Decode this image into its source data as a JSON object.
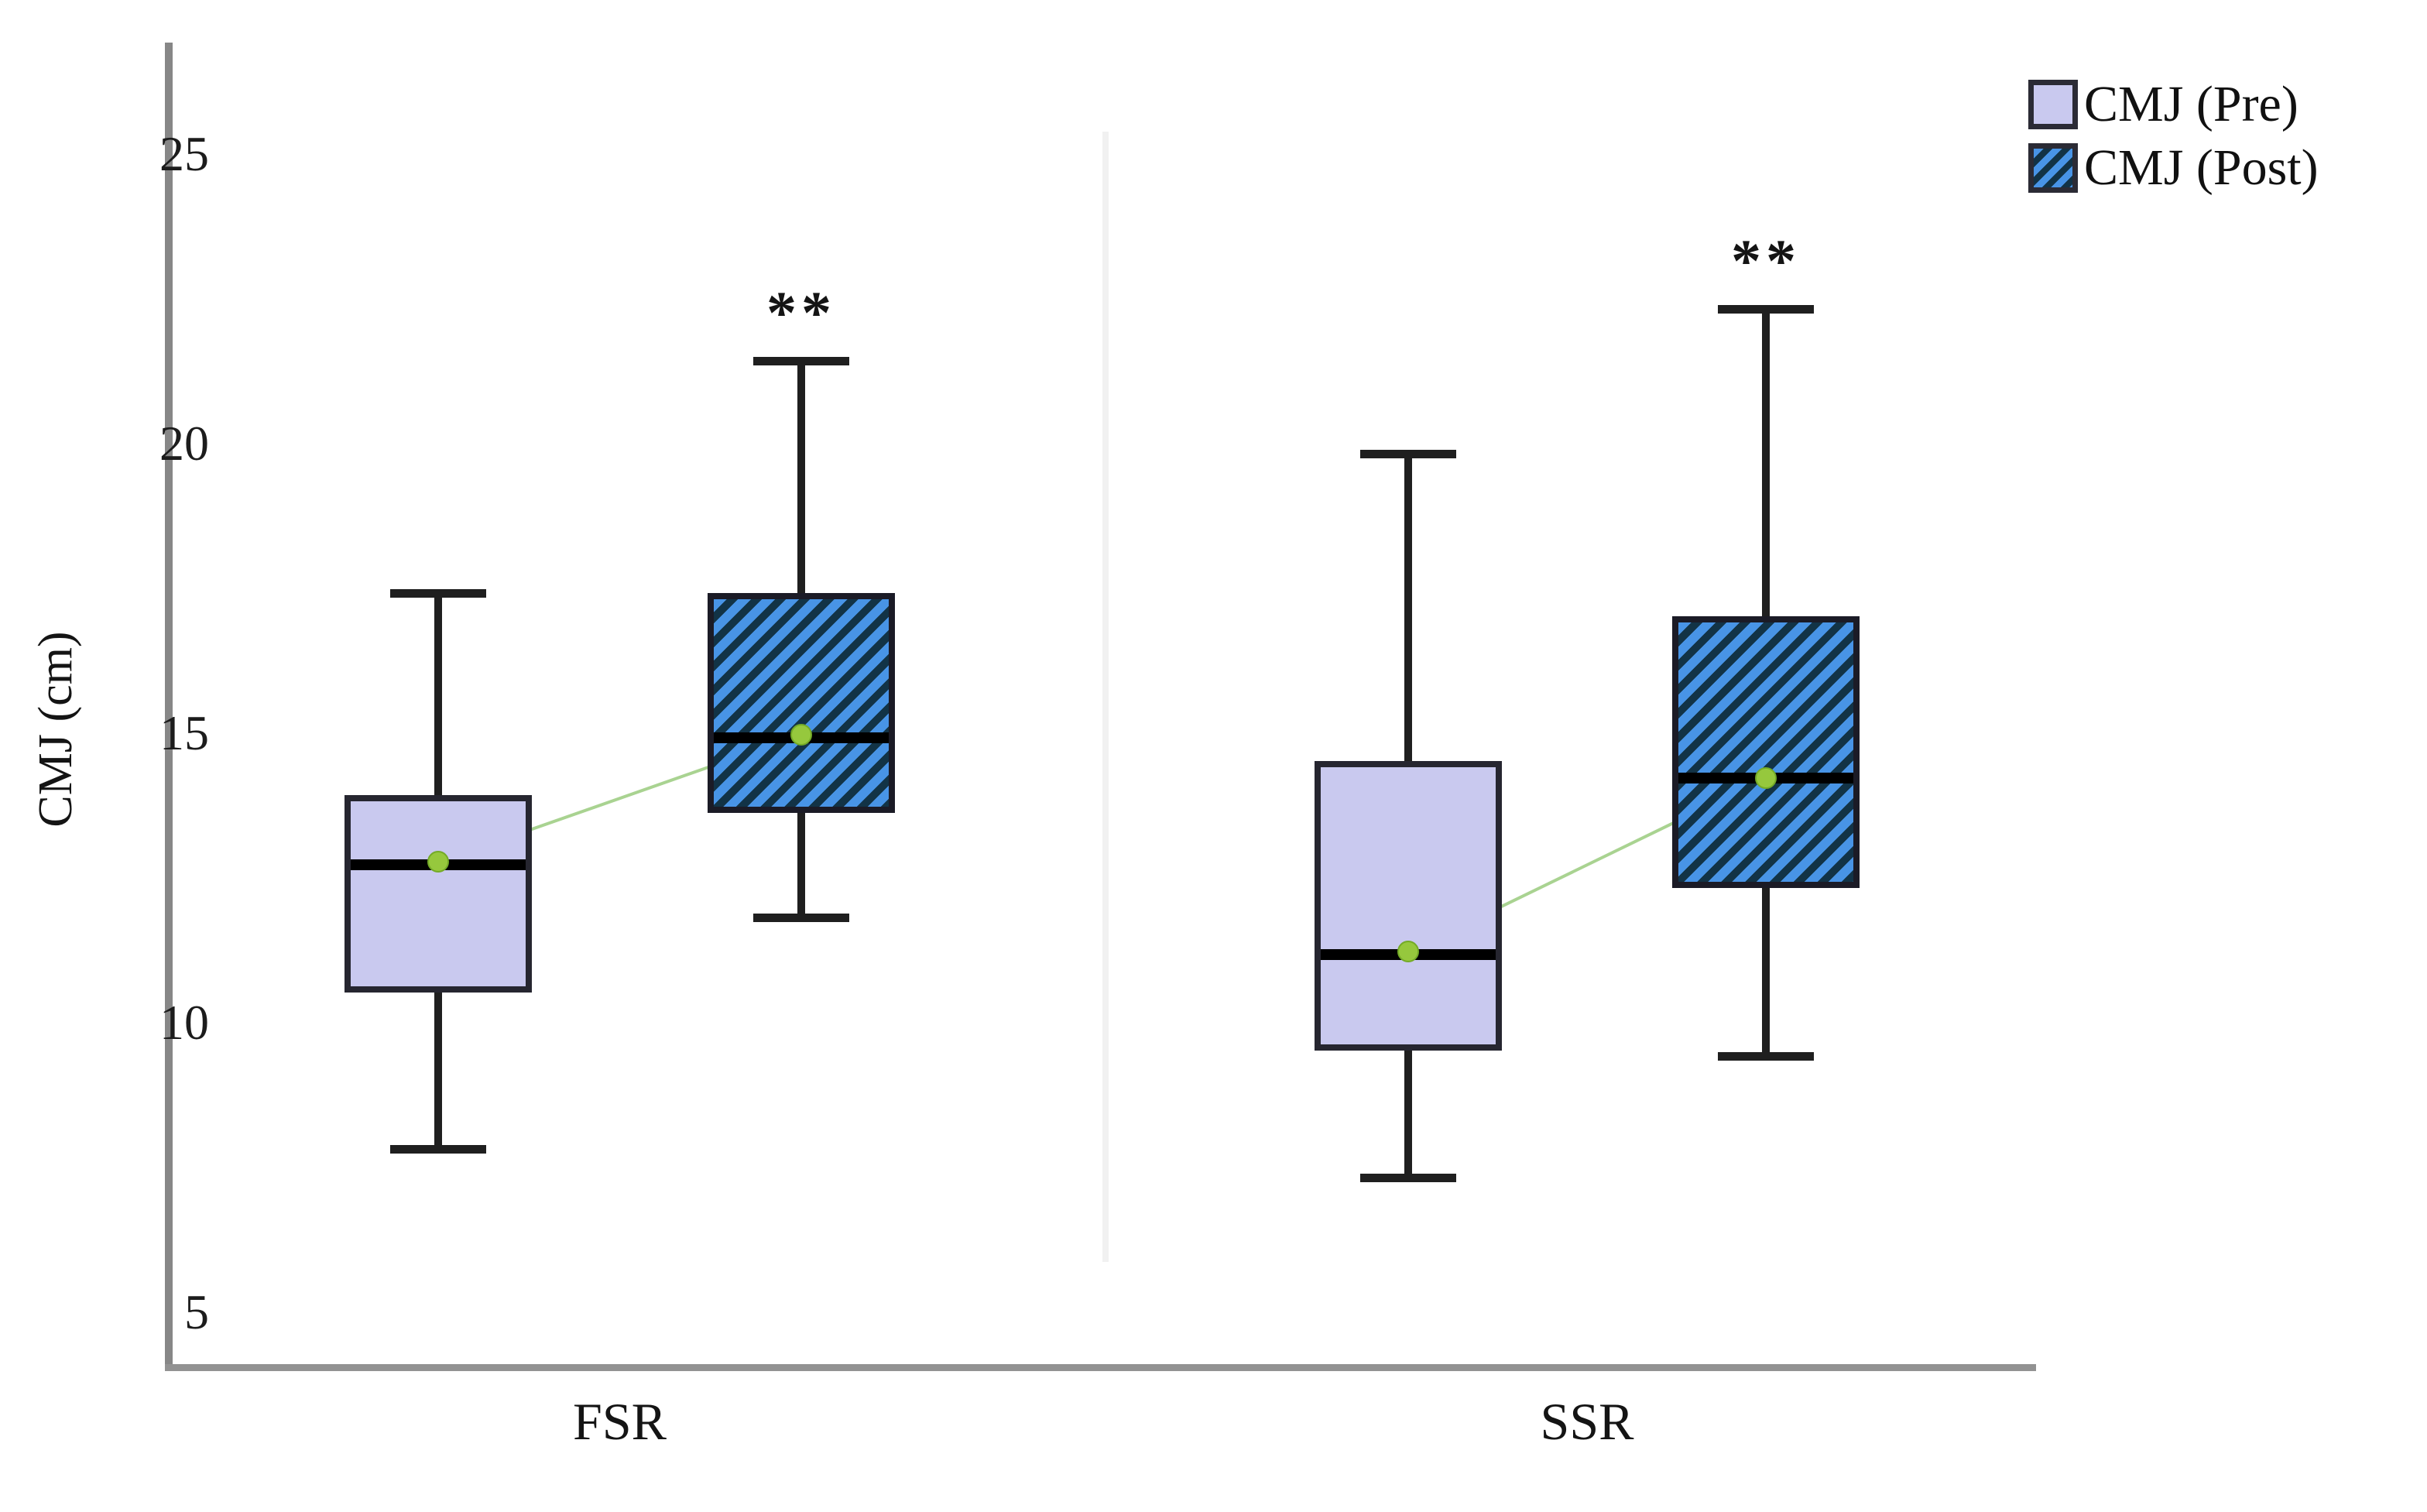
{
  "y_axis_title": "CMJ (cm)",
  "chart_data": {
    "type": "boxplot",
    "title": "",
    "xlabel": "",
    "ylabel": "CMJ (cm)",
    "yticks": [
      5,
      10,
      15,
      20,
      25
    ],
    "ylim": [
      4.0,
      26.9
    ],
    "grid": false,
    "legend_position": "top-right",
    "groups": [
      "FSR",
      "SSR"
    ],
    "series": [
      {
        "name": "CMJ (Pre)",
        "style": "pre",
        "boxes": [
          {
            "group": "FSR",
            "whisker_low": 7.8,
            "q1": 10.5,
            "median": 12.7,
            "q3": 13.9,
            "whisker_high": 17.4,
            "mean": 12.75,
            "significance": ""
          },
          {
            "group": "SSR",
            "whisker_low": 7.3,
            "q1": 9.5,
            "median": 11.15,
            "q3": 14.5,
            "whisker_high": 19.8,
            "mean": 11.2,
            "significance": ""
          }
        ]
      },
      {
        "name": "CMJ (Post)",
        "style": "post",
        "boxes": [
          {
            "group": "FSR",
            "whisker_low": 11.8,
            "q1": 13.6,
            "median": 14.9,
            "q3": 17.4,
            "whisker_high": 21.4,
            "mean": 14.95,
            "significance": "**"
          },
          {
            "group": "SSR",
            "whisker_low": 9.4,
            "q1": 12.3,
            "median": 14.2,
            "q3": 17.0,
            "whisker_high": 22.3,
            "mean": 14.2,
            "significance": "**"
          }
        ]
      }
    ],
    "mean_connectors": [
      {
        "group": "FSR",
        "from_series": 0,
        "to_series": 1
      },
      {
        "group": "SSR",
        "from_series": 0,
        "to_series": 1
      }
    ]
  },
  "colors": {
    "pre_fill": "#c9c9ef",
    "post_fill_light": "#4894e6",
    "post_hatch_dark": "#123346",
    "box_border": "#262630",
    "whisker": "#1f1f1f",
    "median": "#000000",
    "mean_dot": "#96c83d",
    "mean_line": "#a9d391",
    "axis": "#8d8d8d",
    "text": "#1c1c1c"
  }
}
